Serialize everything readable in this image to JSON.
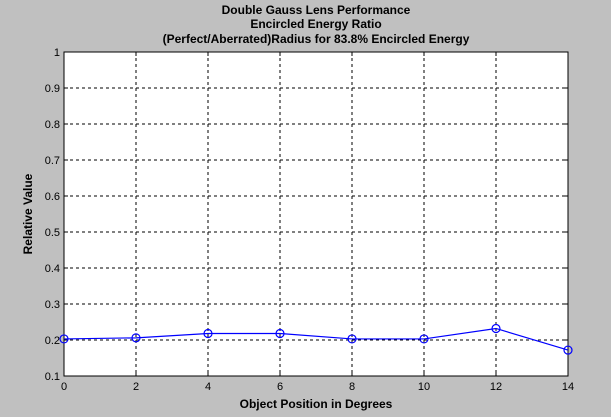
{
  "chart_data": {
    "type": "line",
    "title": [
      "Double Gauss Lens Performance",
      "Encircled Energy Ratio",
      "(Perfect/Aberrated)Radius for 83.8% Encircled Energy"
    ],
    "xlabel": "Object Position in Degrees",
    "ylabel": "Relative Value",
    "xlim": [
      0,
      14
    ],
    "ylim": [
      0.1,
      1
    ],
    "xticks": [
      0,
      2,
      4,
      6,
      8,
      10,
      12,
      14
    ],
    "xtick_labels": [
      "0",
      "2",
      "4",
      "6",
      "8",
      "10",
      "12",
      "14"
    ],
    "yticks": [
      0.1,
      0.2,
      0.3,
      0.4,
      0.5,
      0.6,
      0.7,
      0.8,
      0.9,
      1
    ],
    "ytick_labels": [
      "0.1",
      "0.2",
      "0.3",
      "0.4",
      "0.5",
      "0.6",
      "0.7",
      "0.8",
      "0.9",
      "1"
    ],
    "grid": true,
    "series": [
      {
        "x": [
          0,
          2,
          4,
          6,
          8,
          10,
          12,
          14
        ],
        "y": [
          0.203,
          0.206,
          0.218,
          0.218,
          0.203,
          0.203,
          0.232,
          0.172
        ],
        "color": "#0000ff",
        "marker": "circle"
      }
    ]
  }
}
